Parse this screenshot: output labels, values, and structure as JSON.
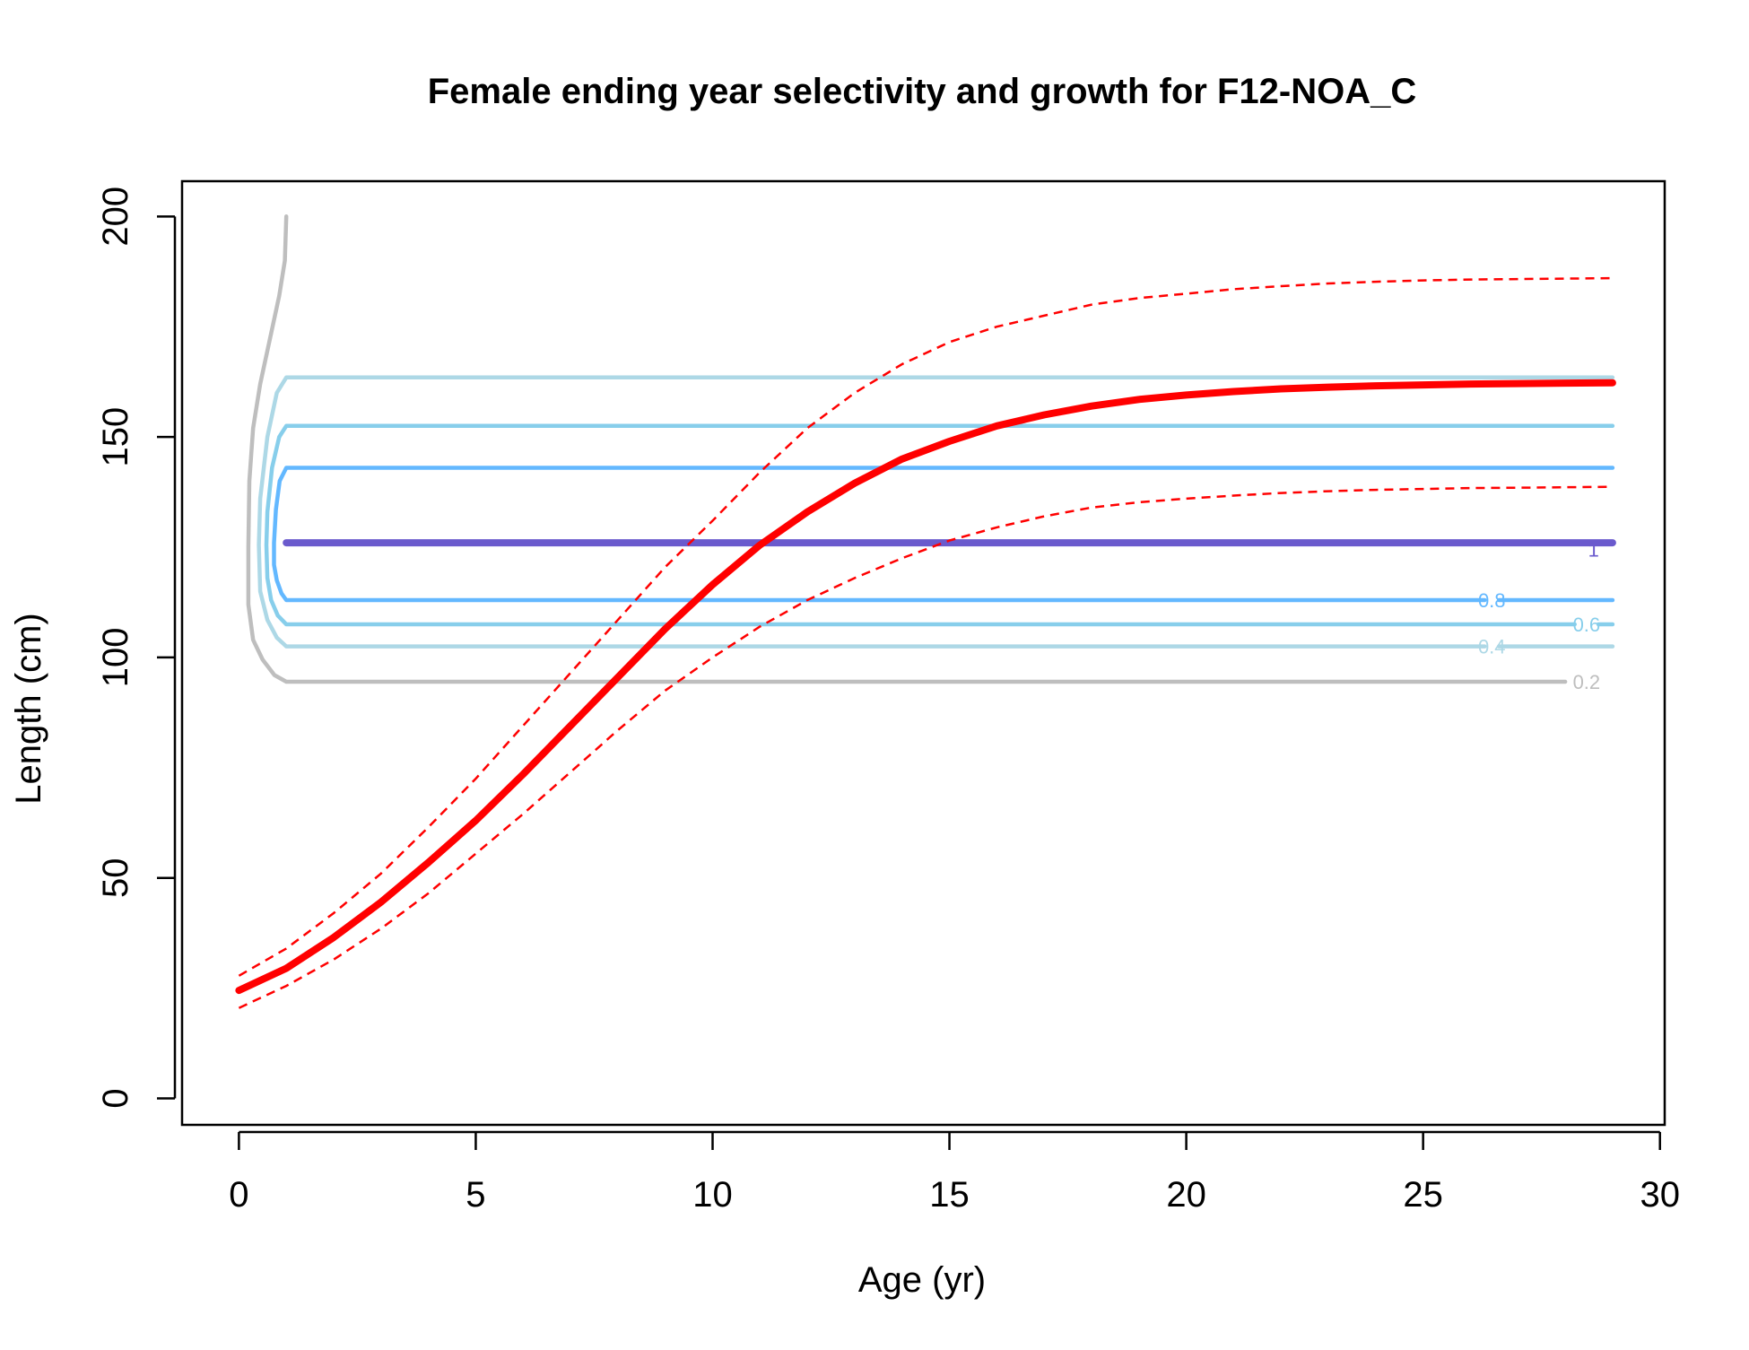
{
  "chart_data": {
    "type": "line",
    "title": "Female ending year selectivity and growth for F12-NOA_C",
    "xlabel": "Age (yr)",
    "ylabel": "Length (cm)",
    "xlim": [
      -1.2,
      30.1
    ],
    "ylim": [
      -6,
      208
    ],
    "x_ticks": [
      0,
      5,
      10,
      15,
      20,
      25,
      30
    ],
    "y_ticks": [
      0,
      50,
      100,
      150,
      200
    ],
    "grid": false,
    "growth": {
      "mean": {
        "color": "#ff0000",
        "x": [
          0,
          1,
          2,
          3,
          4,
          5,
          6,
          7,
          8,
          9,
          10,
          11,
          12,
          13,
          14,
          15,
          16,
          17,
          18,
          19,
          20,
          21,
          22,
          23,
          24,
          25,
          26,
          27,
          28,
          29
        ],
        "y": [
          24.5,
          29.5,
          36.5,
          44.5,
          53.5,
          63.0,
          73.5,
          84.5,
          95.5,
          106.5,
          116.5,
          125.5,
          133.0,
          139.5,
          145.0,
          149.0,
          152.5,
          155.0,
          157.0,
          158.5,
          159.5,
          160.3,
          160.9,
          161.3,
          161.6,
          161.8,
          162.0,
          162.1,
          162.2,
          162.3
        ]
      },
      "upper": {
        "color": "#ff0000",
        "x": [
          0,
          1,
          2,
          3,
          4,
          5,
          6,
          7,
          8,
          9,
          10,
          11,
          12,
          13,
          14,
          15,
          16,
          17,
          18,
          19,
          20,
          21,
          22,
          23,
          24,
          25,
          26,
          27,
          28,
          29
        ],
        "y": [
          27.8,
          34.0,
          42.0,
          51.0,
          61.5,
          72.5,
          84.5,
          96.5,
          108.5,
          120.5,
          131.0,
          142.0,
          152.0,
          160.0,
          166.5,
          171.5,
          175.0,
          177.5,
          180.0,
          181.5,
          182.5,
          183.5,
          184.2,
          184.8,
          185.2,
          185.5,
          185.7,
          185.8,
          185.9,
          186.0
        ]
      },
      "lower": {
        "color": "#ff0000",
        "x": [
          0,
          1,
          2,
          3,
          4,
          5,
          6,
          7,
          8,
          9,
          10,
          11,
          12,
          13,
          14,
          15,
          16,
          17,
          18,
          19,
          20,
          21,
          22,
          23,
          24,
          25,
          26,
          27,
          28,
          29
        ],
        "y": [
          20.5,
          25.5,
          31.5,
          38.5,
          46.5,
          55.5,
          64.5,
          74.0,
          83.5,
          92.5,
          100.0,
          107.0,
          113.0,
          118.0,
          122.5,
          126.5,
          129.5,
          132.0,
          134.0,
          135.2,
          136.0,
          136.7,
          137.3,
          137.7,
          138.0,
          138.2,
          138.4,
          138.5,
          138.6,
          138.7
        ]
      }
    },
    "selectivity_contours": [
      {
        "level": "0.2",
        "color": "#bebebe",
        "x": [
          28,
          1.0,
          0.75,
          0.5,
          0.3,
          0.2,
          0.2,
          0.22,
          0.3,
          0.45,
          0.65,
          0.85,
          0.97,
          1.0
        ],
        "y": [
          94.5,
          94.5,
          96.0,
          99.5,
          104.0,
          112.0,
          125.0,
          140.0,
          152.0,
          162.0,
          172.0,
          182.0,
          190.0,
          200.0
        ],
        "label_x": 28.45,
        "label_y": 94.5
      },
      {
        "level": "0.4",
        "color": "#add8e6",
        "x": [
          26.3,
          1.0,
          0.8,
          0.6,
          0.45,
          0.42,
          0.45,
          0.6,
          0.8,
          1.0,
          29
        ],
        "y": [
          102.5,
          102.5,
          104.5,
          108.5,
          115.0,
          125.5,
          136.0,
          150.0,
          160.0,
          163.5,
          163.5
        ],
        "label_x": 26.45,
        "label_y": 102.5,
        "tail_x": [
          26.6,
          29
        ],
        "tail_y": [
          102.5,
          102.5
        ]
      },
      {
        "level": "0.6",
        "color": "#87ceeb",
        "x": [
          28.2,
          1.0,
          0.82,
          0.68,
          0.6,
          0.58,
          0.6,
          0.7,
          0.85,
          1.0,
          29
        ],
        "y": [
          107.5,
          107.5,
          109.5,
          113.0,
          118.0,
          125.5,
          133.0,
          143.0,
          150.0,
          152.5,
          152.5
        ],
        "label_x": 28.45,
        "label_y": 107.5,
        "tail_x": [
          28.7,
          29
        ],
        "tail_y": [
          107.5,
          107.5
        ]
      },
      {
        "level": "0.8",
        "color": "#63b8ff",
        "x": [
          26.3,
          1.0,
          0.9,
          0.8,
          0.74,
          0.74,
          0.78,
          0.86,
          1.0,
          29
        ],
        "y": [
          113.0,
          113.0,
          114.5,
          117.5,
          121.0,
          126.0,
          133.5,
          140.0,
          143.0,
          143.0
        ],
        "label_x": 26.45,
        "label_y": 113.0,
        "tail_x": [
          26.6,
          29
        ],
        "tail_y": [
          113.0,
          113.0
        ]
      },
      {
        "level": "1",
        "color": "#6a5acd",
        "x": [
          1.0,
          29
        ],
        "y": [
          126.0,
          126.0
        ],
        "label_x": 28.6,
        "label_y": 124.5
      }
    ]
  }
}
